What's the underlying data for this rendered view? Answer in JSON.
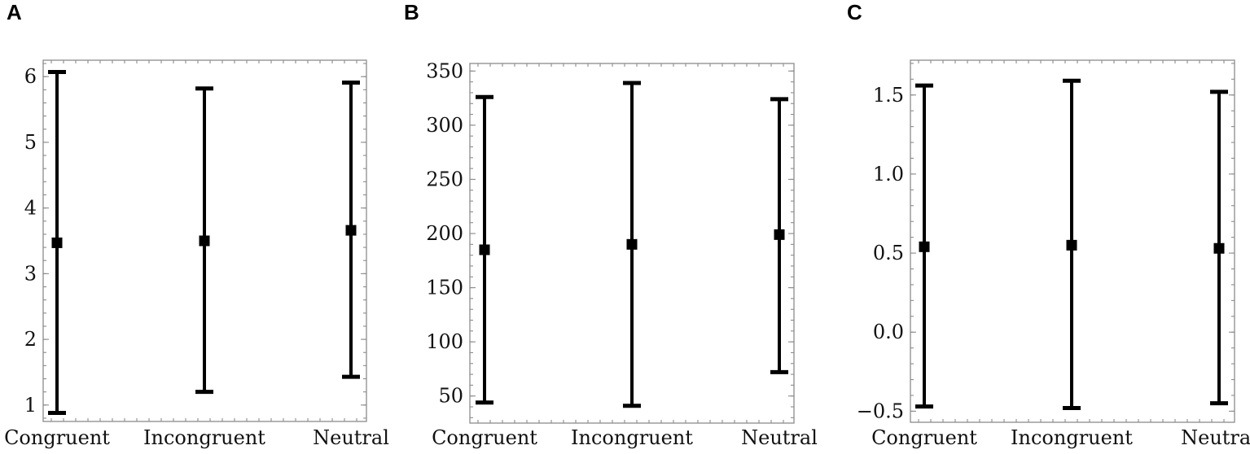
{
  "chart_data": [
    {
      "type": "errorbar",
      "panel_label": "A",
      "categories": [
        "Congruent",
        "Incongruent",
        "Neutral"
      ],
      "mean": [
        3.47,
        3.5,
        3.66
      ],
      "lower": [
        0.88,
        1.2,
        1.43
      ],
      "upper": [
        6.07,
        5.82,
        5.91
      ],
      "yticks": [
        "1",
        "2",
        "3",
        "4",
        "5",
        "6"
      ],
      "ylim": [
        0.75,
        6.25
      ],
      "title": "",
      "xlabel": "",
      "ylabel": "",
      "grid": false
    },
    {
      "type": "errorbar",
      "panel_label": "B",
      "categories": [
        "Congruent",
        "Incongruent",
        "Neutral"
      ],
      "mean": [
        185,
        190,
        199
      ],
      "lower": [
        44,
        41,
        72
      ],
      "upper": [
        326,
        339,
        324
      ],
      "yticks": [
        "50",
        "100",
        "150",
        "200",
        "250",
        "300",
        "350"
      ],
      "ylim": [
        25,
        357
      ],
      "title": "",
      "xlabel": "",
      "ylabel": "",
      "grid": false
    },
    {
      "type": "errorbar",
      "panel_label": "C",
      "categories": [
        "Congruent",
        "Incongruent",
        "Neutral"
      ],
      "mean": [
        0.54,
        0.55,
        0.53
      ],
      "lower": [
        -0.47,
        -0.48,
        -0.45
      ],
      "upper": [
        1.56,
        1.59,
        1.52
      ],
      "yticks": [
        "-0.5",
        "0.0",
        "0.5",
        "1.0",
        "1.5"
      ],
      "ylim": [
        -0.57,
        1.72
      ],
      "title": "",
      "xlabel": "",
      "ylabel": "",
      "grid": false
    }
  ]
}
